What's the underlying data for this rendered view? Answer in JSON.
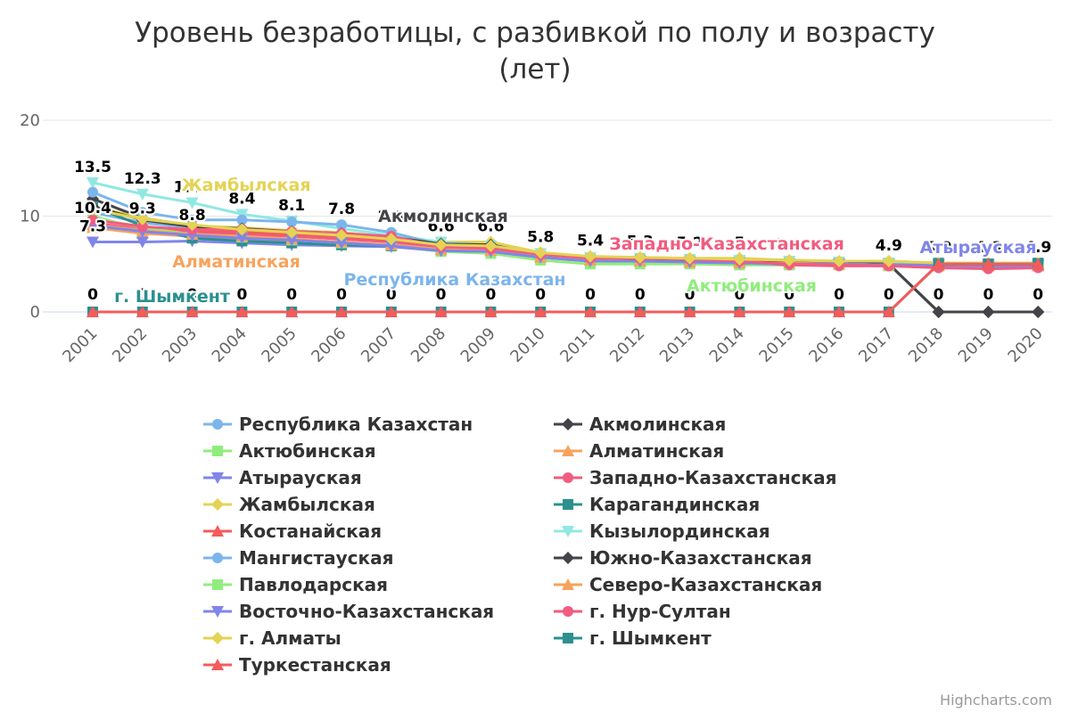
{
  "chart_data": {
    "type": "line",
    "title": "Уровень безработицы, с разбивкой по полу и возрасту (лет)",
    "title_lines": [
      "Уровень безработицы, с разбивкой по полу и возрасту",
      "(лет)"
    ],
    "x": [
      "2001",
      "2002",
      "2003",
      "2004",
      "2005",
      "2006",
      "2007",
      "2008",
      "2009",
      "2010",
      "2011",
      "2012",
      "2013",
      "2014",
      "2015",
      "2016",
      "2017",
      "2018",
      "2019",
      "2020"
    ],
    "y_ticks": [
      0,
      10,
      20
    ],
    "ylim": [
      0,
      20
    ],
    "grid": true,
    "legend_position": "bottom",
    "series": [
      {
        "name": "Республика Казахстан",
        "color": "#7cb5ec",
        "symbol": "circle",
        "values": [
          10.4,
          9.3,
          8.8,
          8.4,
          8.1,
          7.8,
          7.3,
          6.6,
          6.6,
          5.8,
          5.4,
          5.3,
          5.2,
          5.0,
          5.1,
          5.0,
          4.9,
          4.9,
          4.8,
          4.9
        ],
        "series_label": "Республика Казахстан"
      },
      {
        "name": "Акмолинская",
        "color": "#434348",
        "symbol": "diamond",
        "values": [
          11.8,
          9.8,
          9.0,
          8.6,
          8.3,
          8.0,
          7.8,
          7.2,
          7.0,
          6.0,
          5.6,
          5.5,
          5.4,
          5.3,
          5.2,
          5.1,
          5.0,
          0,
          0,
          0
        ],
        "series_label": "Акмолинская"
      },
      {
        "name": "Актюбинская",
        "color": "#90ed7d",
        "symbol": "square",
        "values": [
          10.0,
          8.6,
          8.0,
          7.7,
          7.4,
          7.1,
          6.9,
          6.3,
          6.1,
          5.4,
          5.0,
          5.0,
          5.0,
          4.9,
          4.9,
          4.9,
          4.8,
          4.8,
          4.8,
          4.8
        ],
        "series_label": "Актюбинская"
      },
      {
        "name": "Алматинская",
        "color": "#f7a35c",
        "symbol": "triangle",
        "values": [
          8.8,
          8.2,
          7.9,
          7.6,
          7.4,
          7.2,
          7.0,
          6.5,
          6.4,
          5.7,
          5.4,
          5.3,
          5.2,
          5.2,
          5.1,
          5.0,
          4.9,
          4.9,
          4.8,
          4.8
        ],
        "series_label": "Алматинская"
      },
      {
        "name": "Атырауская",
        "color": "#8085e9",
        "symbol": "triangle-down",
        "values": [
          7.3,
          7.3,
          7.4,
          7.2,
          7.0,
          6.9,
          6.8,
          6.4,
          6.3,
          5.7,
          5.3,
          5.3,
          5.2,
          5.1,
          5.0,
          5.0,
          5.0,
          5.0,
          5.0,
          5.0
        ],
        "series_label": "Атырауская"
      },
      {
        "name": "Западно-Казахстанская",
        "color": "#f15c80",
        "symbol": "circle",
        "values": [
          9.3,
          8.6,
          8.3,
          8.1,
          7.9,
          7.6,
          7.3,
          6.8,
          6.6,
          5.9,
          5.6,
          5.6,
          5.4,
          5.2,
          4.9,
          4.8,
          4.8,
          4.7,
          4.6,
          4.7
        ],
        "series_label": "Западно-Казахстанская"
      },
      {
        "name": "Жамбылская",
        "color": "#e4d354",
        "symbol": "diamond",
        "values": [
          11.0,
          9.8,
          9.0,
          8.8,
          8.5,
          8.3,
          7.8,
          7.3,
          7.3,
          6.2,
          5.7,
          5.7,
          5.6,
          5.6,
          5.4,
          5.3,
          5.3,
          5.1,
          5.1,
          5.1
        ],
        "series_label": "Жамбылская"
      },
      {
        "name": "Карагандинская",
        "color": "#2b908f",
        "symbol": "square",
        "values": [
          11.0,
          9.0,
          7.7,
          7.4,
          7.2,
          7.0,
          6.9,
          6.5,
          6.4,
          5.8,
          5.5,
          5.4,
          5.4,
          5.3,
          5.3,
          5.2,
          5.1,
          5.1,
          5.0,
          5.1
        ],
        "series_label": ""
      },
      {
        "name": "Костанайская",
        "color": "#f45b5b",
        "symbol": "triangle",
        "values": [
          9.7,
          8.9,
          8.5,
          8.3,
          8.1,
          7.9,
          7.5,
          7.0,
          6.8,
          6.1,
          5.7,
          5.6,
          5.5,
          5.4,
          5.3,
          5.2,
          5.1,
          5.0,
          4.9,
          4.9
        ],
        "series_label": ""
      },
      {
        "name": "Кызылординская",
        "color": "#91e8e1",
        "symbol": "triangle-down",
        "values": [
          13.5,
          12.3,
          11.4,
          10.2,
          9.5,
          8.7,
          8.0,
          7.3,
          6.9,
          6.1,
          5.7,
          5.6,
          5.5,
          5.4,
          5.3,
          5.2,
          5.1,
          5.0,
          4.9,
          4.9
        ],
        "series_label": ""
      },
      {
        "name": "Мангистауская",
        "color": "#7cb5ec",
        "symbol": "circle",
        "values": [
          12.5,
          10.4,
          9.6,
          9.6,
          9.4,
          9.1,
          8.3,
          7.0,
          6.8,
          5.9,
          5.5,
          5.4,
          5.3,
          5.2,
          5.1,
          5.1,
          5.0,
          4.9,
          4.9,
          4.9
        ],
        "series_label": ""
      },
      {
        "name": "Южно-Казахстанская",
        "color": "#434348",
        "symbol": "diamond",
        "values": [
          11.0,
          9.6,
          8.9,
          8.7,
          8.4,
          8.2,
          7.8,
          7.1,
          7.0,
          6.0,
          5.6,
          5.5,
          5.4,
          5.3,
          5.2,
          5.1,
          5.0,
          0,
          0,
          0
        ],
        "series_label": ""
      },
      {
        "name": "Павлодарская",
        "color": "#90ed7d",
        "symbol": "square",
        "values": [
          9.8,
          8.8,
          8.1,
          7.8,
          7.5,
          7.2,
          7.0,
          6.5,
          6.3,
          5.7,
          5.3,
          5.2,
          5.2,
          5.1,
          5.0,
          5.0,
          4.9,
          4.9,
          4.8,
          4.8
        ],
        "series_label": ""
      },
      {
        "name": "Северо-Казахстанская",
        "color": "#f7a35c",
        "symbol": "triangle",
        "values": [
          9.1,
          8.5,
          8.1,
          7.9,
          7.6,
          7.3,
          7.0,
          6.5,
          6.4,
          5.7,
          5.4,
          5.3,
          5.2,
          5.1,
          5.1,
          5.0,
          4.9,
          4.8,
          4.8,
          4.8
        ],
        "series_label": ""
      },
      {
        "name": "Восточно-Казахстанская",
        "color": "#8085e9",
        "symbol": "triangle-down",
        "values": [
          9.0,
          8.4,
          8.0,
          7.7,
          7.5,
          7.2,
          6.9,
          6.4,
          6.3,
          5.7,
          5.3,
          5.3,
          5.2,
          5.1,
          5.0,
          5.0,
          4.9,
          4.9,
          4.8,
          4.8
        ],
        "series_label": ""
      },
      {
        "name": "г. Нур-Султан",
        "color": "#f15c80",
        "symbol": "circle",
        "values": [
          9.6,
          8.9,
          8.6,
          8.6,
          8.4,
          8.2,
          7.9,
          6.8,
          6.6,
          6.0,
          5.6,
          5.6,
          5.5,
          5.3,
          5.0,
          4.9,
          4.8,
          4.6,
          4.5,
          4.6
        ],
        "series_label": ""
      },
      {
        "name": "г. Алматы",
        "color": "#e4d354",
        "symbol": "diamond",
        "values": [
          10.7,
          9.7,
          9.1,
          8.6,
          8.3,
          8.0,
          7.6,
          7.0,
          6.9,
          6.2,
          5.8,
          5.7,
          5.6,
          5.5,
          5.4,
          5.3,
          5.3,
          5.1,
          5.1,
          5.1
        ],
        "series_label": ""
      },
      {
        "name": "г. Шымкент",
        "color": "#2b908f",
        "symbol": "square",
        "values": [
          0,
          0,
          0,
          0,
          0,
          0,
          0,
          0,
          0,
          0,
          0,
          0,
          0,
          0,
          0,
          0,
          0,
          5.0,
          5.0,
          5.0
        ],
        "series_label": "г. Шымкент"
      },
      {
        "name": "Туркестанская",
        "color": "#f45b5b",
        "symbol": "triangle",
        "values": [
          0,
          0,
          0,
          0,
          0,
          0,
          0,
          0,
          0,
          0,
          0,
          0,
          0,
          0,
          0,
          0,
          0,
          5.0,
          5.0,
          5.0
        ],
        "series_label": ""
      }
    ],
    "data_labels": [
      "13.5",
      "12.3",
      "11.4",
      "8.4",
      "8.1",
      "7.8",
      "7.3",
      "6.6",
      "6.6",
      "5.8",
      "5.4",
      "5.3",
      "5.2",
      "5",
      "5.1",
      "5",
      "4.9",
      "4.9",
      "4.8",
      "4.9"
    ],
    "data_labels_extra": {
      "2001": [
        "10.4",
        "7.3"
      ],
      "2002": [
        "9.3"
      ],
      "2003": [
        "8.8"
      ]
    },
    "zero_labels": [
      "0",
      "0",
      "0",
      "0",
      "0",
      "0",
      "0",
      "0",
      "0",
      "0",
      "0",
      "0",
      "0",
      "0",
      "0",
      "0",
      "0",
      "0",
      "0",
      "0"
    ],
    "credits": "Highcharts.com"
  }
}
